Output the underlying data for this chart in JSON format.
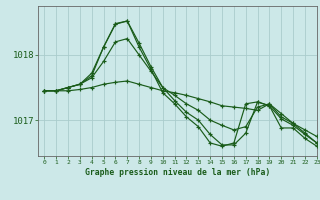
{
  "title": "Graphe pression niveau de la mer (hPa)",
  "background_color": "#cce8e8",
  "grid_color": "#aacccc",
  "line_color": "#1a5c1a",
  "xlim": [
    -0.5,
    23
  ],
  "ylim": [
    1016.45,
    1018.75
  ],
  "yticks": [
    1017,
    1018
  ],
  "ytick_labels": [
    "1017",
    "1018"
  ],
  "xticks": [
    0,
    1,
    2,
    3,
    4,
    5,
    6,
    7,
    8,
    9,
    10,
    11,
    12,
    13,
    14,
    15,
    16,
    17,
    18,
    19,
    20,
    21,
    22,
    23
  ],
  "series": [
    [
      1017.45,
      1017.45,
      1017.45,
      1017.47,
      1017.5,
      1017.55,
      1017.58,
      1017.6,
      1017.55,
      1017.5,
      1017.45,
      1017.42,
      1017.38,
      1017.33,
      1017.28,
      1017.22,
      1017.2,
      1017.18,
      1017.15,
      1017.25,
      1017.1,
      1016.95,
      1016.85,
      1016.75
    ],
    [
      1017.45,
      1017.45,
      1017.5,
      1017.55,
      1017.65,
      1017.9,
      1018.2,
      1018.25,
      1018.0,
      1017.75,
      1017.5,
      1017.38,
      1017.25,
      1017.15,
      1017.0,
      1016.92,
      1016.85,
      1016.9,
      1017.2,
      1017.25,
      1017.05,
      1016.95,
      1016.8,
      1016.65
    ],
    [
      1017.45,
      1017.45,
      1017.5,
      1017.55,
      1017.68,
      1018.12,
      1018.47,
      1018.52,
      1018.18,
      1017.82,
      1017.5,
      1017.3,
      1017.12,
      1017.0,
      1016.78,
      1016.62,
      1016.62,
      1016.8,
      1017.28,
      1017.22,
      1017.02,
      1016.92,
      1016.78,
      1016.65
    ],
    [
      1017.45,
      1017.45,
      1017.5,
      1017.55,
      1017.72,
      1018.12,
      1018.48,
      1018.52,
      1018.12,
      1017.78,
      1017.42,
      1017.25,
      1017.05,
      1016.9,
      1016.65,
      1016.6,
      1016.65,
      1017.25,
      1017.28,
      1017.22,
      1016.88,
      1016.88,
      1016.72,
      1016.6
    ]
  ]
}
